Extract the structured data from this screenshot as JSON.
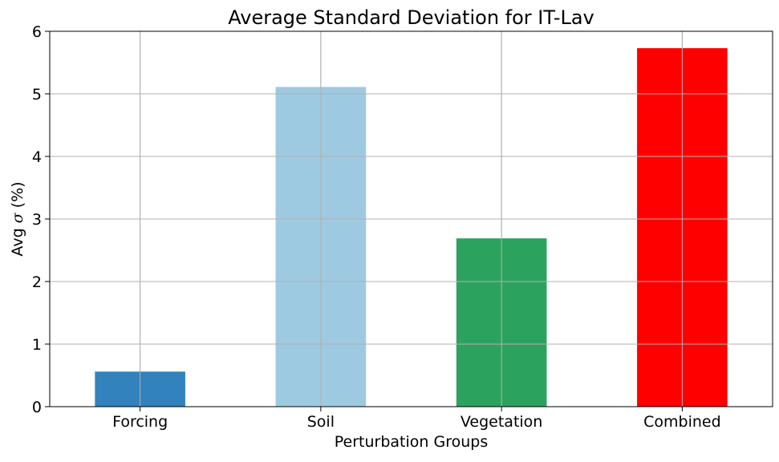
{
  "chart_data": {
    "type": "bar",
    "title": "Average Standard Deviation for IT-Lav",
    "xlabel": "Perturbation Groups",
    "ylabel_prefix": "Avg ",
    "ylabel_symbol": "σ",
    "ylabel_suffix": " (%)",
    "categories": [
      "Forcing",
      "Soil",
      "Vegetation",
      "Combined"
    ],
    "values": [
      0.56,
      5.11,
      2.69,
      5.73
    ],
    "colors": [
      "#3182bd",
      "#9ecae1",
      "#2ca25f",
      "#ff0000"
    ],
    "ylim": [
      0,
      6
    ],
    "yticks": [
      0,
      1,
      2,
      3,
      4,
      5,
      6
    ],
    "grid": true,
    "legend": "none"
  }
}
